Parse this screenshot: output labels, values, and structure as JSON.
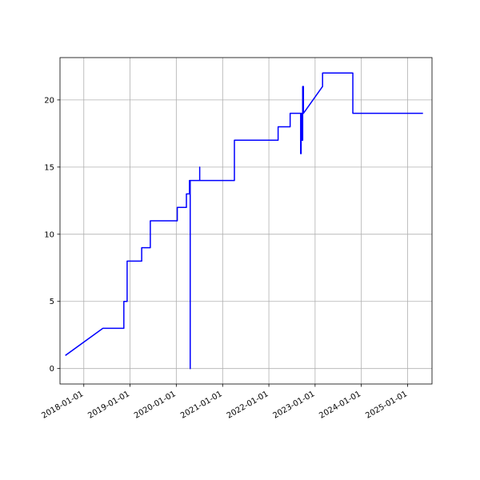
{
  "chart_data": {
    "type": "line",
    "title": "",
    "xlabel": "",
    "ylabel": "",
    "x_axis_type": "date",
    "xlim": [
      "2017-06-27",
      "2025-07-12"
    ],
    "ylim": [
      -1.15,
      23.15
    ],
    "grid": true,
    "colors": {
      "line": "#0000ff",
      "grid": "#b0b0b0",
      "axes": "#000000"
    },
    "x_ticks": [
      "2018-01-01",
      "2019-01-01",
      "2020-01-01",
      "2021-01-01",
      "2022-01-01",
      "2023-01-01",
      "2024-01-01",
      "2025-01-01"
    ],
    "x_tick_labels": [
      "2018-01-01",
      "2019-01-01",
      "2020-01-01",
      "2021-01-01",
      "2022-01-01",
      "2023-01-01",
      "2024-01-01",
      "2025-01-01"
    ],
    "y_ticks": [
      0,
      5,
      10,
      15,
      20
    ],
    "y_tick_labels": [
      "0",
      "5",
      "10",
      "15",
      "20"
    ],
    "series": [
      {
        "x": [
          "2017-08-12",
          "2018-06-01",
          "2018-11-13",
          "2018-11-13",
          "2018-12-09",
          "2018-12-09",
          "2019-04-03",
          "2019-04-03",
          "2019-06-10",
          "2019-06-10",
          "2020-01-09",
          "2020-01-09",
          "2020-03-21",
          "2020-03-21",
          "2020-04-14",
          "2020-04-14",
          "2020-04-20",
          "2020-04-20",
          "2020-04-20",
          "2020-04-20",
          "2020-07-04",
          "2020-07-04",
          "2020-07-04",
          "2021-04-04",
          "2021-04-04",
          "2022-03-15",
          "2022-03-15",
          "2022-06-18",
          "2022-06-18",
          "2022-09-09",
          "2022-09-09",
          "2022-09-13",
          "2022-09-13",
          "2022-09-19",
          "2022-09-19",
          "2022-09-25",
          "2022-09-25",
          "2022-10-01",
          "2022-10-01",
          "2023-03-01",
          "2023-03-01",
          "2023-10-26",
          "2023-10-26",
          "2025-04-27"
        ],
        "y": [
          1,
          3,
          3,
          5,
          5,
          8,
          8,
          9,
          9,
          11,
          11,
          12,
          12,
          13,
          13,
          14,
          14,
          0,
          14,
          14,
          14,
          15,
          14,
          14,
          17,
          17,
          18,
          18,
          19,
          19,
          16,
          16,
          19,
          19,
          17,
          17,
          21,
          21,
          19,
          21,
          22,
          22,
          19,
          19
        ]
      }
    ]
  }
}
